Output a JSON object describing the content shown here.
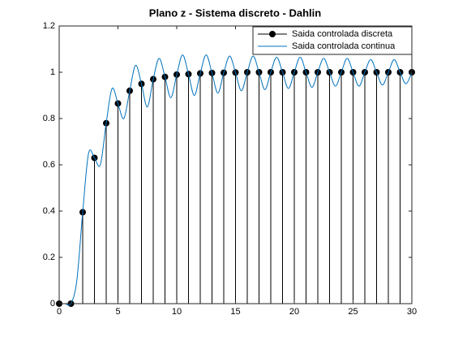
{
  "chart_data": {
    "type": "stem",
    "title": "Plano z - Sistema discreto - Dahlin",
    "xlim": [
      0,
      30
    ],
    "xticks": [
      0,
      5,
      10,
      15,
      20,
      25,
      30
    ],
    "ylim": [
      0,
      1.2
    ],
    "yticks": [
      0,
      0.2,
      0.4,
      0.6,
      0.8,
      1,
      1.2
    ],
    "legend": "top-right",
    "series": [
      {
        "name": "Saida controlada discreta",
        "color": "#000000",
        "type": "stem",
        "x": [
          0,
          1,
          2,
          3,
          4,
          5,
          6,
          7,
          8,
          9,
          10,
          11,
          12,
          13,
          14,
          15,
          16,
          17,
          18,
          19,
          20,
          21,
          22,
          23,
          24,
          25,
          26,
          27,
          28,
          29,
          30
        ],
        "values": [
          0,
          0,
          0.395,
          0.63,
          0.78,
          0.865,
          0.92,
          0.95,
          0.97,
          0.98,
          0.99,
          0.992,
          0.995,
          0.997,
          0.998,
          0.999,
          1,
          1,
          1,
          1,
          1,
          1,
          1,
          1,
          1,
          1,
          1,
          1,
          1,
          1,
          1
        ]
      },
      {
        "name": "Saida controlada continua",
        "color": "#0072bd",
        "type": "line",
        "x": [
          0,
          0.5,
          1,
          1.5,
          2,
          2.5,
          3,
          3.5,
          4,
          4.5,
          5,
          5.5,
          6,
          6.5,
          7,
          7.5,
          8,
          8.5,
          9,
          9.5,
          10,
          10.5,
          11,
          11.5,
          12,
          12.5,
          13,
          13.5,
          14,
          14.5,
          15,
          15.5,
          16,
          16.5,
          17,
          17.5,
          18,
          18.5,
          19,
          19.5,
          20,
          20.5,
          21,
          21.5,
          22,
          22.5,
          23,
          23.5,
          24,
          24.5,
          25,
          25.5,
          26,
          26.5,
          27,
          27.5,
          28,
          28.5,
          29,
          29.5,
          30
        ],
        "values": [
          0,
          0,
          0,
          0.1,
          0.395,
          0.65,
          0.63,
          0.6,
          0.78,
          0.93,
          0.865,
          0.8,
          0.92,
          1.03,
          0.95,
          0.85,
          0.97,
          1.06,
          0.98,
          0.89,
          0.99,
          1.075,
          0.992,
          0.9,
          0.995,
          1.075,
          0.997,
          0.91,
          0.998,
          1.07,
          0.999,
          0.92,
          1,
          1.07,
          1,
          0.925,
          1,
          1.065,
          1,
          0.93,
          1,
          1.065,
          1,
          0.935,
          1,
          1.06,
          1,
          0.94,
          1,
          1.06,
          1,
          0.94,
          1,
          1.055,
          1,
          0.945,
          1,
          1.055,
          1,
          0.95,
          1
        ]
      }
    ]
  }
}
